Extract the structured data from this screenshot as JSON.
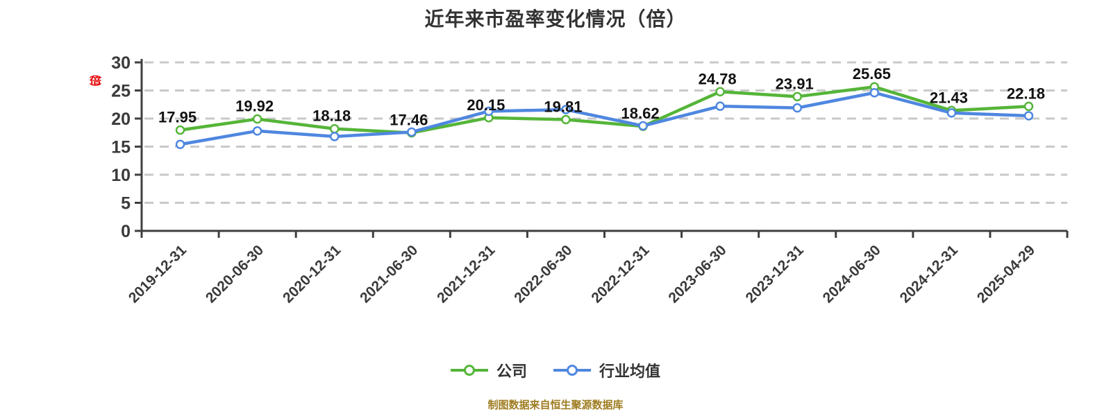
{
  "title": "近年来市盈率变化情况（倍）",
  "y_axis_unit_label": "（倍）",
  "footer_note": "制图数据来自恒生聚源数据库",
  "legend": [
    {
      "label": "公司",
      "color": "#55b538"
    },
    {
      "label": "行业均值",
      "color": "#4f87e0"
    }
  ],
  "colors": {
    "company_line": "#55b538",
    "industry_line": "#4f87e0",
    "marker_fill": "#ffffff",
    "grid_line": "#c9c9c9",
    "axis_line": "#3f3f3f",
    "tick_label": "#3a3a3a",
    "data_label": "#111111",
    "title_text": "#333333",
    "unit_label_red": "#e60000",
    "footer_gold": "#9e7c20"
  },
  "chart_data": {
    "type": "line",
    "title": "近年来市盈率变化情况（倍）",
    "categories": [
      "2019-12-31",
      "2020-06-30",
      "2020-12-31",
      "2021-06-30",
      "2021-12-31",
      "2022-06-30",
      "2022-12-31",
      "2023-06-30",
      "2023-12-31",
      "2024-06-30",
      "2024-12-31",
      "2025-04-29"
    ],
    "series": [
      {
        "name": "公司",
        "color": "#55b538",
        "values": [
          17.95,
          19.92,
          18.18,
          17.46,
          20.15,
          19.81,
          18.62,
          24.78,
          23.91,
          25.65,
          21.43,
          22.18
        ],
        "data_labels_shown": true
      },
      {
        "name": "行业均值",
        "color": "#4f87e0",
        "values": [
          15.4,
          17.8,
          16.8,
          17.6,
          21.3,
          21.6,
          18.7,
          22.2,
          21.9,
          24.6,
          21.0,
          20.5
        ],
        "data_labels_shown": false
      }
    ],
    "xlabel": "",
    "ylabel": "（倍）",
    "ylim": [
      0,
      30
    ],
    "yticks": [
      0,
      5,
      10,
      15,
      20,
      25,
      30
    ],
    "grid": "horizontal-dashed",
    "legend_position": "bottom"
  }
}
